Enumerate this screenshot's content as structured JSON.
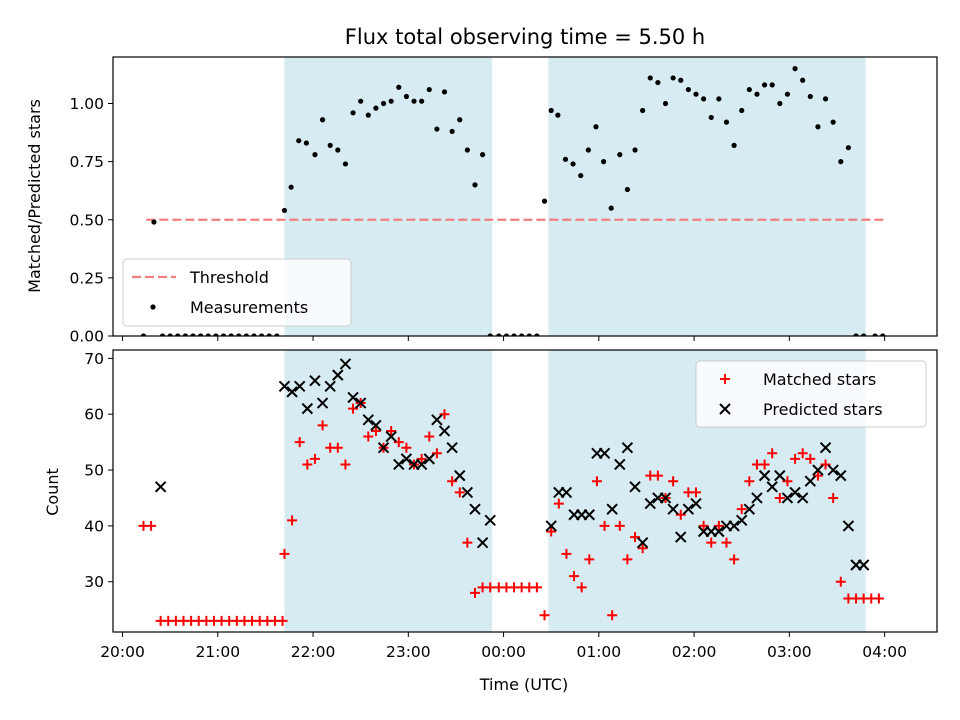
{
  "title": "Flux total observing time = 5.50 h",
  "colors": {
    "band": "#add8e6",
    "threshold": "#f08080",
    "measurement": "#000000",
    "matched": "#ff0000",
    "predicted": "#000000"
  },
  "chart_data": [
    {
      "type": "scatter",
      "ylabel": "Matched/Predicted stars",
      "ylim": [
        0,
        1.2
      ],
      "xlim_hours": [
        19.9,
        28.55
      ],
      "x_ticks": [
        20,
        21,
        22,
        23,
        24,
        25,
        26,
        27,
        28
      ],
      "x_tick_labels": [
        "20:00",
        "21:00",
        "22:00",
        "23:00",
        "00:00",
        "01:00",
        "02:00",
        "03:00",
        "04:00"
      ],
      "y_ticks": [
        0,
        0.25,
        0.5,
        0.75,
        1.0
      ],
      "y_tick_labels": [
        "0.00",
        "0.25",
        "0.50",
        "0.75",
        "1.00"
      ],
      "shaded_intervals_hours": [
        [
          21.7,
          23.88
        ],
        [
          24.47,
          27.8
        ]
      ],
      "threshold": {
        "value": 0.5,
        "x_range_hours": [
          20.25,
          28.0
        ],
        "label": "Threshold"
      },
      "legend": [
        "Threshold",
        "Measurements"
      ],
      "legend_position": "lower-left",
      "series": [
        {
          "name": "Measurements",
          "marker": "dot",
          "x_hours": [
            20.22,
            20.33,
            20.42,
            20.5,
            20.58,
            20.66,
            20.74,
            20.82,
            20.9,
            20.98,
            21.06,
            21.14,
            21.22,
            21.3,
            21.38,
            21.46,
            21.54,
            21.62,
            21.7,
            21.77,
            21.85,
            21.93,
            22.02,
            22.1,
            22.18,
            22.26,
            22.34,
            22.42,
            22.5,
            22.58,
            22.66,
            22.74,
            22.82,
            22.9,
            22.98,
            23.06,
            23.14,
            23.22,
            23.3,
            23.38,
            23.46,
            23.54,
            23.62,
            23.7,
            23.78,
            23.86,
            23.95,
            24.03,
            24.11,
            24.19,
            24.27,
            24.35,
            24.43,
            24.5,
            24.57,
            24.65,
            24.73,
            24.81,
            24.89,
            24.97,
            25.05,
            25.13,
            25.22,
            25.3,
            25.38,
            25.46,
            25.54,
            25.62,
            25.7,
            25.78,
            25.86,
            25.94,
            26.02,
            26.1,
            26.18,
            26.26,
            26.34,
            26.42,
            26.5,
            26.58,
            26.66,
            26.74,
            26.82,
            26.9,
            26.98,
            27.06,
            27.14,
            27.22,
            27.3,
            27.38,
            27.46,
            27.54,
            27.62,
            27.7,
            27.78,
            27.9,
            27.98
          ],
          "y": [
            0.0,
            0.49,
            0.0,
            0.0,
            0.0,
            0.0,
            0.0,
            0.0,
            0.0,
            0.0,
            0.0,
            0.0,
            0.0,
            0.0,
            0.0,
            0.0,
            0.0,
            0.0,
            0.54,
            0.64,
            0.84,
            0.83,
            0.78,
            0.93,
            0.82,
            0.8,
            0.74,
            0.96,
            1.01,
            0.95,
            0.98,
            1.0,
            1.01,
            1.07,
            1.03,
            1.01,
            1.01,
            1.06,
            0.89,
            1.05,
            0.88,
            0.93,
            0.8,
            0.65,
            0.78,
            0.0,
            0.0,
            0.0,
            0.0,
            0.0,
            0.0,
            0.0,
            0.58,
            0.97,
            0.95,
            0.76,
            0.74,
            0.69,
            0.8,
            0.9,
            0.75,
            0.55,
            0.78,
            0.63,
            0.8,
            0.97,
            1.11,
            1.09,
            1.0,
            1.11,
            1.1,
            1.06,
            1.04,
            1.02,
            0.94,
            1.02,
            0.92,
            0.82,
            0.97,
            1.06,
            1.04,
            1.08,
            1.08,
            1.0,
            1.04,
            1.15,
            1.1,
            1.03,
            0.9,
            1.02,
            0.92,
            0.75,
            0.81,
            0.0,
            0.0,
            0.0,
            0.0
          ]
        }
      ]
    },
    {
      "type": "scatter",
      "xlabel": "Time (UTC)",
      "ylabel": "Count",
      "ylim": [
        21,
        71.5
      ],
      "xlim_hours": [
        19.9,
        28.55
      ],
      "x_ticks": [
        20,
        21,
        22,
        23,
        24,
        25,
        26,
        27,
        28
      ],
      "x_tick_labels": [
        "20:00",
        "21:00",
        "22:00",
        "23:00",
        "00:00",
        "01:00",
        "02:00",
        "03:00",
        "04:00"
      ],
      "y_ticks": [
        30,
        40,
        50,
        60,
        70
      ],
      "y_tick_labels": [
        "30",
        "40",
        "50",
        "60",
        "70"
      ],
      "shaded_intervals_hours": [
        [
          21.7,
          23.88
        ],
        [
          24.47,
          27.8
        ]
      ],
      "legend": [
        "Matched stars",
        "Predicted stars"
      ],
      "legend_position": "upper-right",
      "series": [
        {
          "name": "Matched stars",
          "marker": "plus",
          "x_hours": [
            20.22,
            20.3,
            20.4,
            20.48,
            20.56,
            20.64,
            20.72,
            20.8,
            20.88,
            20.96,
            21.04,
            21.12,
            21.2,
            21.28,
            21.36,
            21.44,
            21.52,
            21.6,
            21.68,
            21.7,
            21.78,
            21.86,
            21.94,
            22.02,
            22.1,
            22.18,
            22.26,
            22.34,
            22.42,
            22.5,
            22.58,
            22.66,
            22.74,
            22.82,
            22.9,
            22.98,
            23.06,
            23.14,
            23.22,
            23.3,
            23.38,
            23.46,
            23.54,
            23.62,
            23.7,
            23.78,
            23.86,
            23.95,
            24.03,
            24.11,
            24.19,
            24.27,
            24.35,
            24.43,
            24.5,
            24.58,
            24.66,
            24.74,
            24.82,
            24.9,
            24.98,
            25.06,
            25.14,
            25.22,
            25.3,
            25.38,
            25.46,
            25.54,
            25.62,
            25.7,
            25.78,
            25.86,
            25.94,
            26.02,
            26.1,
            26.18,
            26.26,
            26.34,
            26.42,
            26.5,
            26.58,
            26.66,
            26.74,
            26.82,
            26.9,
            26.98,
            27.06,
            27.14,
            27.22,
            27.3,
            27.38,
            27.46,
            27.54,
            27.62,
            27.7,
            27.78,
            27.86,
            27.94
          ],
          "y": [
            40,
            40,
            23,
            23,
            23,
            23,
            23,
            23,
            23,
            23,
            23,
            23,
            23,
            23,
            23,
            23,
            23,
            23,
            23,
            35,
            41,
            55,
            51,
            52,
            58,
            54,
            54,
            51,
            61,
            62,
            56,
            57,
            54,
            57,
            55,
            54,
            51,
            52,
            56,
            53,
            60,
            48,
            46,
            37,
            28,
            29,
            29,
            29,
            29,
            29,
            29,
            29,
            29,
            24,
            39,
            44,
            35,
            31,
            29,
            34,
            48,
            40,
            24,
            40,
            34,
            38,
            36,
            49,
            49,
            45,
            48,
            42,
            46,
            46,
            40,
            37,
            40,
            37,
            34,
            43,
            48,
            51,
            51,
            53,
            45,
            48,
            52,
            53,
            52,
            49,
            51,
            45,
            30,
            27,
            27,
            27,
            27,
            27
          ],
          "note": ""
        },
        {
          "name": "Predicted stars",
          "marker": "x",
          "x_hours": [
            20.4,
            21.7,
            21.78,
            21.86,
            21.94,
            22.02,
            22.1,
            22.18,
            22.26,
            22.34,
            22.42,
            22.5,
            22.58,
            22.66,
            22.74,
            22.82,
            22.9,
            22.98,
            23.06,
            23.14,
            23.22,
            23.3,
            23.38,
            23.46,
            23.54,
            23.62,
            23.7,
            23.78,
            23.86,
            24.5,
            24.58,
            24.66,
            24.74,
            24.82,
            24.9,
            24.98,
            25.06,
            25.14,
            25.22,
            25.3,
            25.38,
            25.46,
            25.54,
            25.62,
            25.7,
            25.78,
            25.86,
            25.94,
            26.02,
            26.1,
            26.18,
            26.26,
            26.34,
            26.42,
            26.5,
            26.58,
            26.66,
            26.74,
            26.82,
            26.9,
            26.98,
            27.06,
            27.14,
            27.22,
            27.3,
            27.38,
            27.46,
            27.54,
            27.62,
            27.7,
            27.78
          ],
          "y": [
            47,
            65,
            64,
            65,
            61,
            66,
            62,
            65,
            67,
            69,
            63,
            62,
            59,
            58,
            54,
            56,
            51,
            52,
            51,
            51,
            52,
            59,
            57,
            54,
            49,
            46,
            43,
            37,
            41,
            40,
            46,
            46,
            42,
            42,
            42,
            53,
            53,
            43,
            51,
            54,
            47,
            37,
            44,
            45,
            45,
            43,
            38,
            43,
            44,
            39,
            39,
            39,
            40,
            40,
            41,
            43,
            45,
            49,
            47,
            49,
            45,
            46,
            45,
            48,
            50,
            54,
            50,
            49,
            40,
            33,
            33
          ]
        }
      ]
    }
  ]
}
